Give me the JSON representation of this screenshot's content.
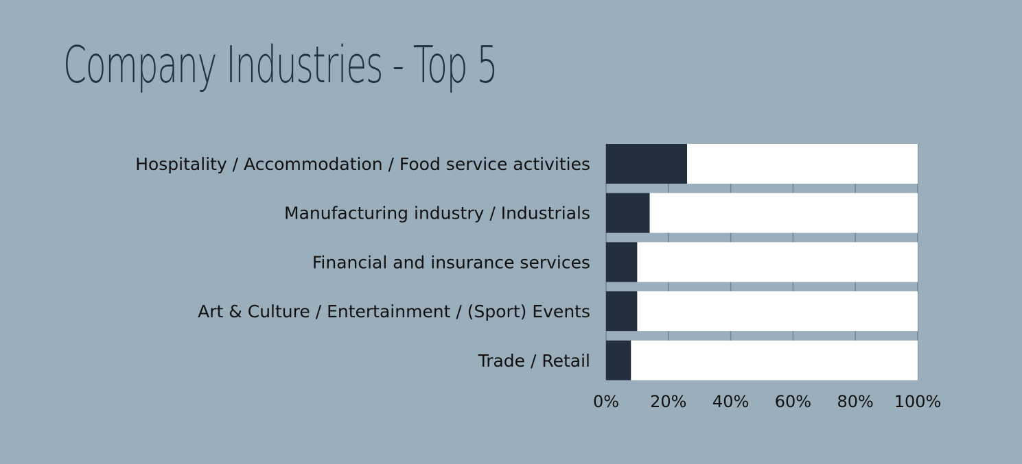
{
  "title": "Company Industries - Top 5",
  "chart_data": {
    "type": "bar",
    "orientation": "horizontal",
    "stacked_percent": true,
    "categories": [
      "Hospitality / Accommodation / Food service activities",
      "Manufacturing industry / Industrials",
      "Financial and insurance services",
      "Art & Culture / Entertainment / (Sport) Events",
      "Trade / Retail"
    ],
    "values": [
      26,
      14,
      10,
      10,
      8
    ],
    "xlim": [
      0,
      100
    ],
    "x_ticks": [
      "0%",
      "20%",
      "40%",
      "60%",
      "80%",
      "100%"
    ],
    "grid": true,
    "legend": "none",
    "colors": {
      "bar": "#232f3c",
      "remainder": "#ffffff",
      "background": "#9aaebb",
      "grid": "#6f8493"
    }
  }
}
